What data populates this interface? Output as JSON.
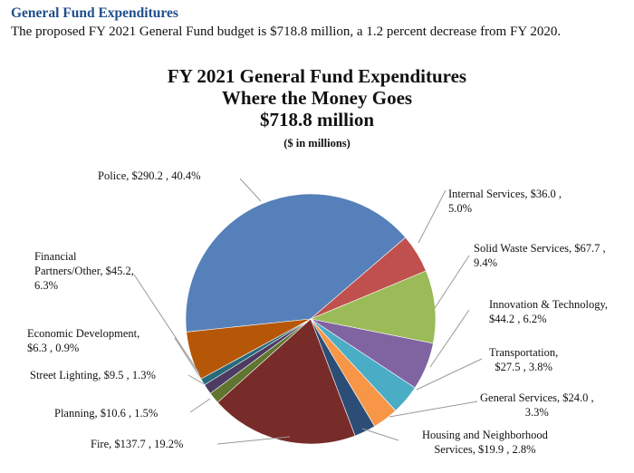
{
  "section_heading": "General Fund Expenditures",
  "intro_text": "The proposed FY 2021 General Fund budget is $718.8 million, a 1.2 percent decrease from FY 2020.",
  "chart_data": {
    "type": "pie",
    "title_lines": [
      "FY 2021 General Fund Expenditures",
      "Where the Money Goes",
      "$718.8 million"
    ],
    "subtitle": "($ in millions)",
    "unit": "$ millions",
    "slices": [
      {
        "name": "Police",
        "value": 290.2,
        "percent": 40.4,
        "color": "#5680b9",
        "label": [
          "Police,  $290.2 , 40.4%"
        ]
      },
      {
        "name": "Internal Services",
        "value": 36.0,
        "percent": 5.0,
        "color": "#c0504d",
        "label": [
          "Internal Services,  $36.0 ,",
          "5.0%"
        ]
      },
      {
        "name": "Solid Waste Services",
        "value": 67.7,
        "percent": 9.4,
        "color": "#9bbb59",
        "label": [
          "Solid Waste Services,  $67.7 ,",
          "9.4%"
        ]
      },
      {
        "name": "Innovation & Technology",
        "value": 44.2,
        "percent": 6.2,
        "color": "#8064a2",
        "label": [
          "Innovation & Technology,",
          "$44.2 , 6.2%"
        ]
      },
      {
        "name": "Transportation",
        "value": 27.5,
        "percent": 3.8,
        "color": "#4bacc6",
        "label": [
          "Transportation,",
          "$27.5 , 3.8%"
        ]
      },
      {
        "name": "General Services",
        "value": 24.0,
        "percent": 3.3,
        "color": "#f79646",
        "label": [
          "General Services,  $24.0 ,",
          "3.3%"
        ]
      },
      {
        "name": "Housing and Neighborhood Services",
        "value": 19.9,
        "percent": 2.8,
        "color": "#2c4d75",
        "label": [
          "Housing and Neighborhood",
          "Services,  $19.9 , 2.8%"
        ]
      },
      {
        "name": "Fire",
        "value": 137.7,
        "percent": 19.2,
        "color": "#772c2a",
        "label": [
          "Fire,  $137.7 , 19.2%"
        ]
      },
      {
        "name": "Planning",
        "value": 10.6,
        "percent": 1.5,
        "color": "#5f7530",
        "label": [
          "Planning,  $10.6 , 1.5%"
        ]
      },
      {
        "name": "Street Lighting",
        "value": 9.5,
        "percent": 1.3,
        "color": "#4d3b62",
        "label": [
          "Street Lighting,  $9.5 , 1.3%"
        ]
      },
      {
        "name": "Economic Development",
        "value": 6.3,
        "percent": 0.9,
        "color": "#276a7c",
        "label": [
          "Economic Development,",
          "$6.3 , 0.9%"
        ]
      },
      {
        "name": "Financial Partners/Other",
        "value": 45.2,
        "percent": 6.3,
        "color": "#b65708",
        "label": [
          "Financial",
          "Partners/Other, $45.2,",
          "6.3%"
        ]
      }
    ]
  }
}
